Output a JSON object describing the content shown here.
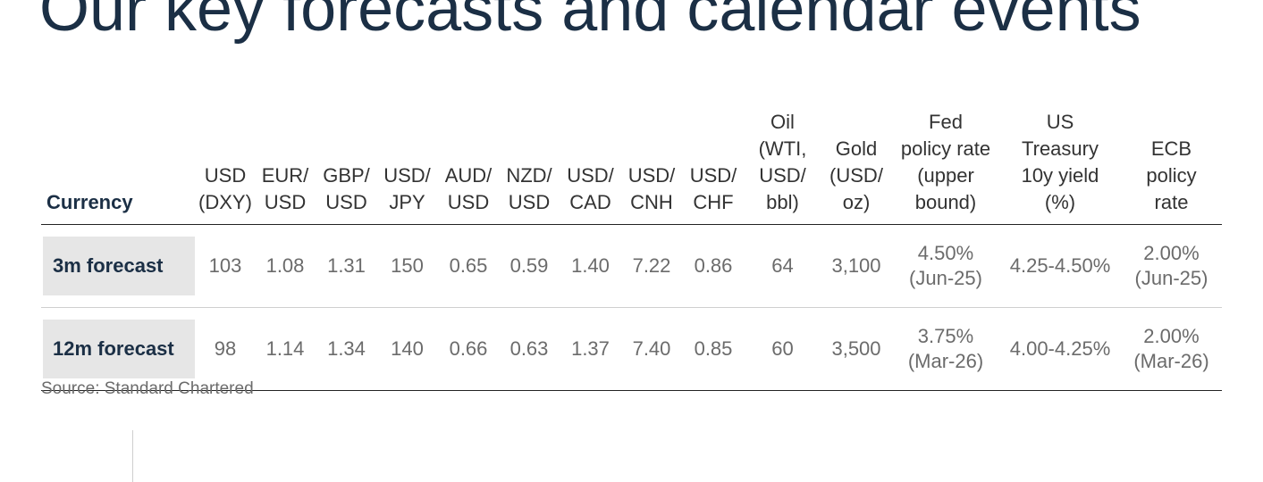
{
  "title": "Our key forecasts and calendar events",
  "table": {
    "header_label": "Currency",
    "columns": [
      "USD\n(DXY)",
      "EUR/\nUSD",
      "GBP/\nUSD",
      "USD/\nJPY",
      "AUD/\nUSD",
      "NZD/\nUSD",
      "USD/\nCAD",
      "USD/\nCNH",
      "USD/\nCHF",
      "Oil\n(WTI,\nUSD/\nbbl)",
      "Gold\n(USD/\noz)",
      "Fed\npolicy rate\n(upper\nbound)",
      "US\nTreasury\n10y yield\n(%)",
      "ECB\npolicy\nrate"
    ],
    "rows": [
      {
        "label": "3m forecast",
        "values": [
          "103",
          "1.08",
          "1.31",
          "150",
          "0.65",
          "0.59",
          "1.40",
          "7.22",
          "0.86",
          "64",
          "3,100",
          "4.50%\n(Jun-25)",
          "4.25-4.50%",
          "2.00%\n(Jun-25)"
        ]
      },
      {
        "label": "12m forecast",
        "values": [
          "98",
          "1.14",
          "1.34",
          "140",
          "0.66",
          "0.63",
          "1.37",
          "7.40",
          "0.85",
          "60",
          "3,500",
          "3.75%\n(Mar-26)",
          "4.00-4.25%",
          "2.00%\n(Mar-26)"
        ]
      }
    ]
  },
  "source": "Source: Standard Chartered"
}
